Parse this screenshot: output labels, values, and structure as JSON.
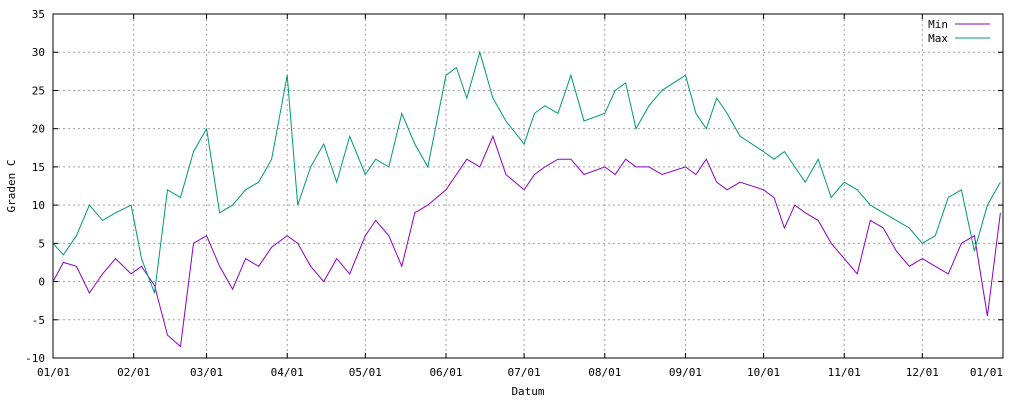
{
  "chart_data": {
    "type": "line",
    "xlabel": "Datum",
    "ylabel": "Graden C",
    "ylim": [
      -10,
      35
    ],
    "yticks": [
      -10,
      -5,
      0,
      5,
      10,
      15,
      20,
      25,
      30,
      35
    ],
    "xticks": [
      "01/01",
      "02/01",
      "03/01",
      "04/01",
      "05/01",
      "06/01",
      "07/01",
      "08/01",
      "09/01",
      "10/01",
      "11/01",
      "12/01",
      "01/01"
    ],
    "grid": true,
    "legend_position": "top-right",
    "x_unit": "day of year (1-365), sampled",
    "x": [
      1,
      5,
      10,
      15,
      20,
      25,
      31,
      35,
      40,
      45,
      50,
      55,
      60,
      65,
      70,
      75,
      80,
      85,
      91,
      95,
      100,
      105,
      110,
      115,
      121,
      125,
      130,
      135,
      140,
      145,
      152,
      156,
      160,
      165,
      170,
      175,
      182,
      186,
      190,
      195,
      200,
      205,
      213,
      217,
      221,
      225,
      230,
      235,
      244,
      248,
      252,
      256,
      260,
      265,
      274,
      278,
      282,
      286,
      290,
      295,
      300,
      305,
      310,
      315,
      320,
      325,
      330,
      335,
      340,
      345,
      350,
      355,
      360,
      365
    ],
    "series": [
      {
        "name": "Min",
        "color": "#8b00c8",
        "values": [
          0,
          2.5,
          2,
          -1.5,
          1,
          3,
          1,
          2,
          -0.5,
          -7,
          -8.5,
          5,
          6,
          2,
          -1,
          3,
          2,
          4.5,
          6,
          5,
          2,
          0,
          3,
          1,
          6,
          8,
          6,
          2,
          9,
          10,
          12,
          14,
          16,
          15,
          19,
          14,
          12,
          14,
          15,
          16,
          16,
          14,
          15,
          14,
          16,
          15,
          15,
          14,
          15,
          14,
          16,
          13,
          12,
          13,
          12,
          11,
          7,
          10,
          9,
          8,
          5,
          3,
          1,
          8,
          7,
          4,
          2,
          3,
          2,
          1,
          5,
          6,
          -4.5,
          9
        ]
      },
      {
        "name": "Max",
        "color": "#009977",
        "values": [
          5,
          3.5,
          6,
          10,
          8,
          9,
          10,
          3,
          -1.5,
          12,
          11,
          17,
          20,
          9,
          10,
          12,
          13,
          16,
          27,
          10,
          15,
          18,
          13,
          19,
          14,
          16,
          15,
          22,
          18,
          15,
          27,
          28,
          24,
          30,
          24,
          21,
          18,
          22,
          23,
          22,
          27,
          21,
          22,
          25,
          26,
          20,
          23,
          25,
          27,
          22,
          20,
          24,
          22,
          19,
          17,
          16,
          17,
          15,
          13,
          16,
          11,
          13,
          12,
          10,
          9,
          8,
          7,
          5,
          6,
          11,
          12,
          4,
          10,
          13
        ]
      }
    ]
  }
}
